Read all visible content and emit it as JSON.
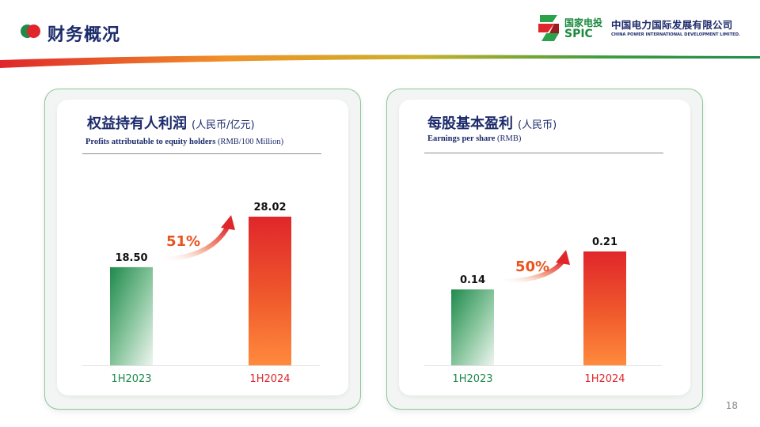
{
  "header": {
    "title": "财务概况",
    "logo": {
      "brand_cn": "国家电投",
      "brand_en": "SPIC",
      "company_cn": "中国电力国际发展有限公司",
      "company_en": "CHINA POWER INTERNATIONAL DEVELOPMENT LIMITED."
    }
  },
  "colors": {
    "title_navy": "#1c2b6b",
    "green": "#1f8a4c",
    "red": "#e0262b",
    "orange": "#e8531f"
  },
  "page_number": "18",
  "chart_data": [
    {
      "type": "bar",
      "title": "权益持有人利润",
      "unit": "(人民币/亿元)",
      "subtitle": "Profits attributable to equity holders",
      "subtitle_unit": "(RMB/100 Million)",
      "categories": [
        "1H2023",
        "1H2024"
      ],
      "values": [
        18.5,
        28.02
      ],
      "value_labels": [
        "18.50",
        "28.02"
      ],
      "growth_label": "51%",
      "ylim": [
        0,
        28.02
      ],
      "bar_colors": [
        "green",
        "red"
      ]
    },
    {
      "type": "bar",
      "title": "每股基本盈利",
      "unit": "(人民币)",
      "subtitle": "Earnings per share",
      "subtitle_unit": "(RMB)",
      "categories": [
        "1H2023",
        "1H2024"
      ],
      "values": [
        0.14,
        0.21
      ],
      "value_labels": [
        "0.14",
        "0.21"
      ],
      "growth_label": "50%",
      "ylim": [
        0,
        0.21
      ],
      "bar_colors": [
        "green",
        "red"
      ]
    }
  ]
}
